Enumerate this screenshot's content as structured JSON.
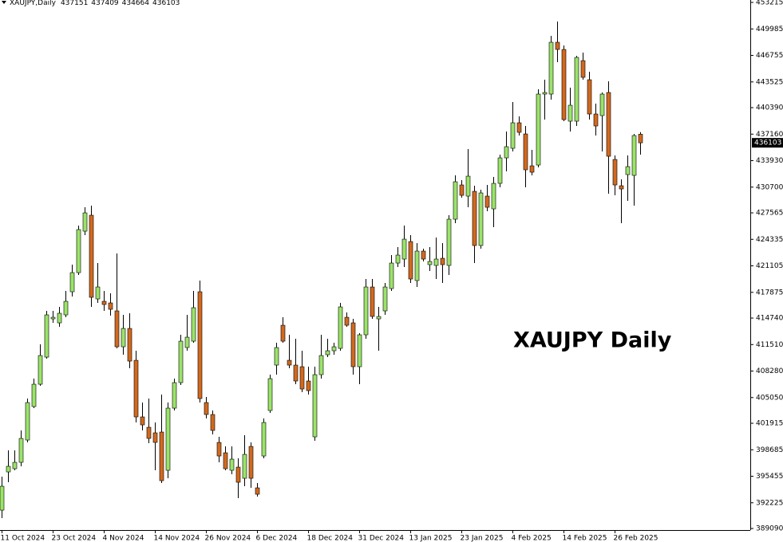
{
  "chart_data": {
    "type": "candlestick",
    "symbol": "XAUJPY,Daily",
    "annotation": "XAUJPY Daily",
    "up_color": "#9be36a",
    "down_color": "#d2691e",
    "categories": [
      "11 Oct 2024",
      null,
      null,
      null,
      null,
      null,
      null,
      null,
      "23 Oct 2024",
      null,
      null,
      null,
      null,
      null,
      null,
      null,
      "4 Nov 2024",
      null,
      null,
      null,
      null,
      null,
      null,
      null,
      "14 Nov 2024",
      null,
      null,
      null,
      null,
      null,
      null,
      null,
      "26 Nov 2024",
      null,
      null,
      null,
      null,
      null,
      null,
      null,
      "6 Dec 2024",
      null,
      null,
      null,
      null,
      null,
      null,
      null,
      "18 Dec 2024",
      null,
      null,
      null,
      null,
      null,
      null,
      null,
      "31 Dec 2024",
      null,
      null,
      null,
      null,
      null,
      null,
      null,
      "13 Jan 2025",
      null,
      null,
      null,
      null,
      null,
      null,
      null,
      "23 Jan 2025",
      null,
      null,
      null,
      null,
      null,
      null,
      null,
      "4 Feb 2025",
      null,
      null,
      null,
      null,
      null,
      null,
      null,
      "14 Feb 2025",
      null,
      null,
      null,
      null,
      null,
      null,
      null,
      "26 Feb 2025",
      null,
      null,
      null,
      null
    ],
    "open": [
      391325,
      395988,
      396377,
      397154,
      399875,
      403955,
      406676,
      409979,
      414643,
      414157,
      415129,
      417946,
      420278,
      425330,
      427274,
      417072,
      416781,
      416586,
      415615,
      411242,
      413477,
      409591,
      402692,
      401429,
      400749,
      400846,
      396183,
      403761,
      406870,
      411145,
      411923,
      417946,
      404441,
      402984,
      399583,
      398320,
      396183,
      396571,
      395211,
      399097,
      394045,
      397931,
      403470,
      409008,
      413866,
      409591,
      409008,
      408813,
      407065,
      400263,
      407842,
      410271,
      410756,
      411048,
      414837,
      414157,
      408813,
      412700,
      418529,
      414643,
      415615,
      418335,
      421444,
      421930,
      424068,
      419307,
      422902,
      421250,
      421153,
      422027,
      421153,
      426788,
      430966,
      429606,
      430188,
      423582,
      429606,
      428051,
      431160,
      434269,
      435435,
      438544,
      437184,
      433298,
      433395,
      442042,
      442042,
      448358,
      447483,
      438739,
      438739,
      446123,
      443791,
      439613,
      439419,
      442236,
      434075,
      430869,
      432229,
      432132,
      437151
    ],
    "high": [
      395405,
      398612,
      398612,
      401041,
      404927,
      407356,
      411534,
      415615,
      415615,
      416100,
      418044,
      421250,
      426011,
      428245,
      428440,
      421444,
      418044,
      417752,
      422610,
      415129,
      415323,
      410756,
      404441,
      404927,
      402012,
      405413,
      404441,
      407356,
      412700,
      415129,
      418044,
      419307,
      405121,
      403470,
      400263,
      399097,
      399097,
      397640,
      400458,
      399583,
      394628,
      402498,
      407842,
      411728,
      414837,
      412700,
      412214,
      410756,
      408813,
      408813,
      412700,
      412214,
      411728,
      416586,
      415420,
      414643,
      412894,
      419501,
      419501,
      416100,
      419015,
      422416,
      423387,
      426011,
      424845,
      423873,
      423193,
      423387,
      424553,
      423873,
      427274,
      432132,
      431549,
      435338,
      430869,
      430383,
      430966,
      431937,
      434658,
      437476,
      441071,
      439322,
      438156,
      435241,
      442625,
      443791,
      449135,
      450884,
      447969,
      442819,
      446705,
      447094,
      444762,
      440876,
      442236,
      443597,
      434561,
      431646,
      434561,
      437184,
      437409
    ],
    "low": [
      390353,
      394725,
      396183,
      396668,
      399583,
      403761,
      406482,
      409785,
      414157,
      413671,
      414837,
      417363,
      419987,
      424845,
      416100,
      416586,
      415615,
      415032,
      411048,
      410271,
      408619,
      402012,
      401041,
      399486,
      396183,
      394628,
      395211,
      403470,
      406579,
      410756,
      411728,
      404441,
      402498,
      400555,
      397154,
      396183,
      395697,
      392782,
      394239,
      394045,
      392976,
      397640,
      403178,
      407842,
      411728,
      408619,
      406676,
      405704,
      405413,
      399778,
      407356,
      409979,
      410271,
      410756,
      413671,
      407842,
      406676,
      412214,
      414643,
      410756,
      415129,
      418044,
      420958,
      420958,
      419015,
      418529,
      421639,
      420472,
      419501,
      419015,
      419987,
      426302,
      429411,
      428245,
      421444,
      423193,
      427760,
      425816,
      430674,
      432618,
      435046,
      436990,
      430674,
      432132,
      433103,
      438933,
      441362,
      445929,
      438739,
      437476,
      438156,
      443791,
      438933,
      436990,
      435046,
      429897,
      429703,
      426302,
      429023,
      428440,
      434664
    ],
    "close": [
      394239,
      396668,
      397154,
      400069,
      404441,
      406676,
      410174,
      415129,
      414837,
      415323,
      416781,
      420278,
      425525,
      427565,
      417266,
      418529,
      416392,
      415809,
      411242,
      413477,
      409494,
      402692,
      401721,
      400069,
      399583,
      394920,
      403761,
      406870,
      411923,
      412408,
      416003,
      404927,
      402984,
      401041,
      397931,
      396377,
      397543,
      394725,
      398126,
      395211,
      393268,
      402012,
      407356,
      411145,
      411923,
      409008,
      407065,
      406093,
      405898,
      407842,
      410174,
      410756,
      411242,
      416100,
      413866,
      408813,
      412700,
      418529,
      414934,
      414934,
      418529,
      421444,
      422416,
      424359,
      419501,
      422902,
      421930,
      421639,
      421930,
      421250,
      426788,
      431355,
      429703,
      432035,
      423582,
      429994,
      428245,
      431160,
      434269,
      435630,
      438544,
      437378,
      432812,
      432520,
      442042,
      442236,
      448358,
      447483,
      438933,
      440682,
      446511,
      444082,
      439613,
      438156,
      442042,
      434464,
      430966,
      430480,
      433201,
      436990,
      436103
    ],
    "ylim": [
      388900,
      453510
    ],
    "yticks": [
      389090,
      392225,
      395455,
      398685,
      401915,
      405050,
      408280,
      411510,
      414740,
      417875,
      421105,
      424335,
      427565,
      430700,
      433930,
      437160,
      440390,
      443525,
      446755,
      449985,
      453215
    ]
  }
}
